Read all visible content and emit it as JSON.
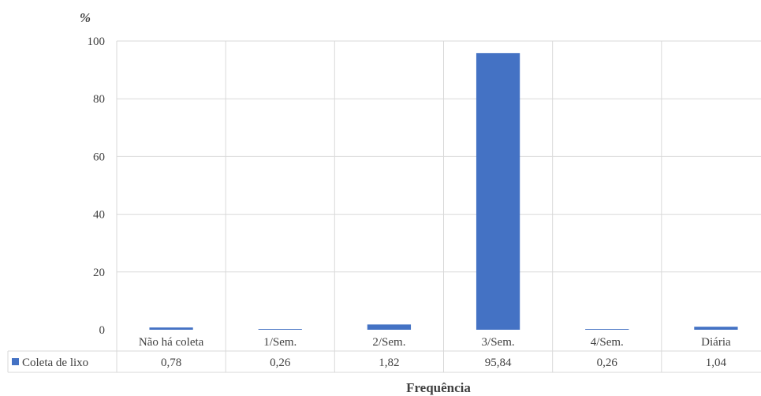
{
  "chart_data": {
    "type": "bar",
    "categories": [
      "Não há coleta",
      "1/Sem.",
      "2/Sem.",
      "3/Sem.",
      "4/Sem.",
      "Diária"
    ],
    "series": [
      {
        "name": "Coleta de lixo",
        "values": [
          0.78,
          0.26,
          1.82,
          95.84,
          0.26,
          1.04
        ],
        "value_labels": [
          "0,78",
          "0,26",
          "1,82",
          "95,84",
          "0,26",
          "1,04"
        ],
        "color": "#4472C4"
      }
    ],
    "title": "",
    "ylabel": "%",
    "xlabel": "Frequência",
    "ylim": [
      0,
      100
    ],
    "yticks": [
      0,
      20,
      40,
      60,
      80,
      100
    ],
    "grid": true,
    "legend": "data-table",
    "gridline_color": "#d9d9d9"
  }
}
